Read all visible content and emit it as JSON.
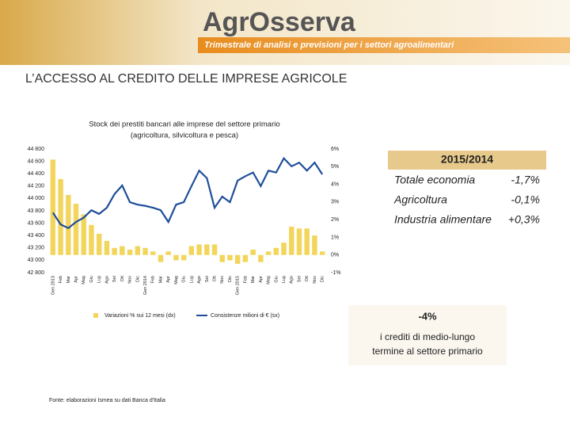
{
  "header": {
    "logo": "AgrOsserva",
    "subtitle": "Trimestrale di analisi e previsioni per i settori agroalimentari"
  },
  "title": "L’ACCESSO AL CREDITO DELLE IMPRESE AGRICOLE",
  "chart_data": {
    "type": "bar",
    "title": [
      "Stock dei prestiti bancari alle imprese del settore primario",
      "(agricoltura, silvicoltura e pesca)"
    ],
    "categories": [
      "Gen 2013",
      "Feb",
      "Mar",
      "Apr",
      "Mag",
      "Giu",
      "Lug",
      "Ago",
      "Set",
      "Ott",
      "Nov",
      "Dic",
      "Gen 2014",
      "Feb",
      "Mar",
      "Apr",
      "Mag",
      "Giu",
      "Lug",
      "Ago",
      "Set",
      "Ott",
      "Nov",
      "Dic",
      "Gen 2015",
      "Feb",
      "Mar",
      "Apr",
      "Mag",
      "Giu",
      "Lug",
      "Ago",
      "Set",
      "Ott",
      "Nov",
      "Dic"
    ],
    "series": [
      {
        "name": "Variazioni % sui 12 mesi (dx)",
        "type": "bar",
        "axis": "y2",
        "color": "#f2d55a",
        "values": [
          5.4,
          4.3,
          3.4,
          2.9,
          2.3,
          1.7,
          1.2,
          0.8,
          0.4,
          0.5,
          0.3,
          0.5,
          0.4,
          0.2,
          -0.4,
          0.2,
          -0.3,
          -0.3,
          0.5,
          0.6,
          0.6,
          0.6,
          -0.4,
          -0.3,
          -0.5,
          -0.4,
          0.3,
          -0.4,
          0.2,
          0.4,
          0.7,
          1.6,
          1.5,
          1.5,
          1.1,
          0.2
        ]
      },
      {
        "name": "Consistenze milioni di € (sx)",
        "type": "line",
        "axis": "y",
        "color": "#1f4e9a",
        "values": [
          43770,
          43580,
          43520,
          43620,
          43690,
          43810,
          43750,
          43850,
          44070,
          44210,
          43940,
          43900,
          43880,
          43850,
          43810,
          43620,
          43900,
          43940,
          44200,
          44450,
          44330,
          43850,
          44030,
          43940,
          44290,
          44360,
          44420,
          44200,
          44450,
          44420,
          44650,
          44520,
          44580,
          44450,
          44580,
          44390
        ]
      }
    ],
    "ylim": [
      42800,
      44800
    ],
    "yticks": [
      {
        "value": 42800,
        "label": "42 800"
      },
      {
        "value": 43000,
        "label": "43 000"
      },
      {
        "value": 43200,
        "label": "43 200"
      },
      {
        "value": 43400,
        "label": "43 400"
      },
      {
        "value": 43600,
        "label": "43 600"
      },
      {
        "value": 43800,
        "label": "43 800"
      },
      {
        "value": 44000,
        "label": "44 000"
      },
      {
        "value": 44200,
        "label": "44 200"
      },
      {
        "value": 44400,
        "label": "44 400"
      },
      {
        "value": 44600,
        "label": "44 600"
      },
      {
        "value": 44800,
        "label": "44 800"
      }
    ],
    "y2lim": [
      -1,
      6
    ],
    "y2ticks": [
      {
        "value": -1,
        "label": "-1%"
      },
      {
        "value": 0,
        "label": "0%"
      },
      {
        "value": 1,
        "label": "1%"
      },
      {
        "value": 2,
        "label": "2%"
      },
      {
        "value": 3,
        "label": "3%"
      },
      {
        "value": 4,
        "label": "4%"
      },
      {
        "value": 5,
        "label": "5%"
      },
      {
        "value": 6,
        "label": "6%"
      }
    ],
    "grid": false,
    "legend": "bottom"
  },
  "panel": {
    "title": "2015/2014",
    "rows": [
      [
        "Totale economia",
        "-1,7%"
      ],
      [
        "Agricoltura",
        "-0,1%"
      ],
      [
        "Industria alimentare",
        "+0,3%"
      ]
    ]
  },
  "callout": {
    "value": "-4%",
    "text": [
      "i crediti di medio-lungo",
      "termine al settore primario"
    ]
  },
  "source": "Fonte: elaborazioni Ismea su dati Banca d'Italia"
}
